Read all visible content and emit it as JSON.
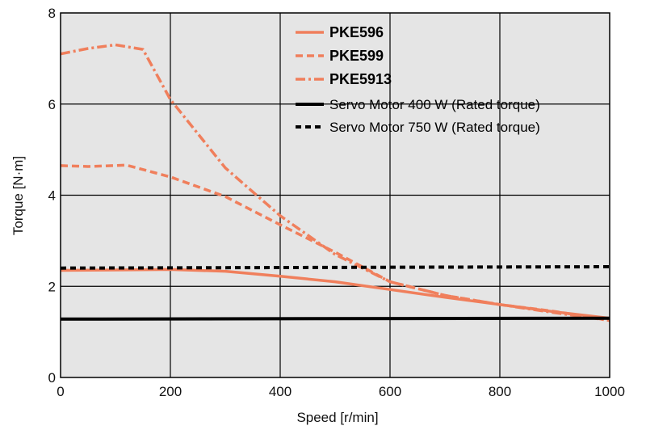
{
  "chart_data": {
    "type": "line",
    "title": "",
    "xlabel": "Speed [r/min]",
    "ylabel": "Torque [N·m]",
    "xlim": [
      0,
      1000
    ],
    "ylim": [
      0,
      8
    ],
    "x_ticks": [
      "0",
      "200",
      "400",
      "600",
      "800",
      "1000"
    ],
    "y_ticks": [
      "0",
      "2",
      "4",
      "6",
      "8"
    ],
    "x_tick_values": [
      0,
      200,
      400,
      600,
      800,
      1000
    ],
    "y_tick_values": [
      0,
      2,
      4,
      6,
      8
    ],
    "grid": true,
    "legend_position": "top-right",
    "colors": {
      "pke": "#f07f5c",
      "servo": "#000000",
      "plot_bg": "#e5e5e5",
      "grid": "#000000"
    },
    "series": [
      {
        "name": "PKE596",
        "style": "solid",
        "color": "#f07f5c",
        "points": [
          [
            0,
            2.35
          ],
          [
            100,
            2.36
          ],
          [
            200,
            2.37
          ],
          [
            300,
            2.33
          ],
          [
            400,
            2.22
          ],
          [
            500,
            2.1
          ],
          [
            600,
            1.93
          ],
          [
            700,
            1.76
          ],
          [
            800,
            1.6
          ],
          [
            900,
            1.44
          ],
          [
            1000,
            1.3
          ]
        ]
      },
      {
        "name": "PKE599",
        "style": "dashed",
        "color": "#f07f5c",
        "points": [
          [
            0,
            4.65
          ],
          [
            50,
            4.63
          ],
          [
            120,
            4.66
          ],
          [
            200,
            4.4
          ],
          [
            300,
            3.97
          ],
          [
            400,
            3.35
          ],
          [
            500,
            2.75
          ],
          [
            600,
            2.1
          ],
          [
            700,
            1.8
          ],
          [
            800,
            1.6
          ],
          [
            900,
            1.45
          ],
          [
            1000,
            1.25
          ]
        ]
      },
      {
        "name": "PKE5913",
        "style": "dashdot",
        "color": "#f07f5c",
        "points": [
          [
            0,
            7.1
          ],
          [
            50,
            7.22
          ],
          [
            100,
            7.3
          ],
          [
            150,
            7.2
          ],
          [
            200,
            6.1
          ],
          [
            300,
            4.6
          ],
          [
            400,
            3.55
          ],
          [
            500,
            2.7
          ],
          [
            600,
            2.1
          ],
          [
            700,
            1.8
          ],
          [
            800,
            1.6
          ],
          [
            900,
            1.42
          ],
          [
            1000,
            1.25
          ]
        ]
      },
      {
        "name": "Servo Motor 400 W (Rated torque)",
        "style": "solid",
        "color": "#000000",
        "points": [
          [
            0,
            1.28
          ],
          [
            1000,
            1.3
          ]
        ]
      },
      {
        "name": "Servo Motor 750 W (Rated torque)",
        "style": "dotted",
        "color": "#000000",
        "points": [
          [
            0,
            2.4
          ],
          [
            1000,
            2.43
          ]
        ]
      }
    ]
  }
}
